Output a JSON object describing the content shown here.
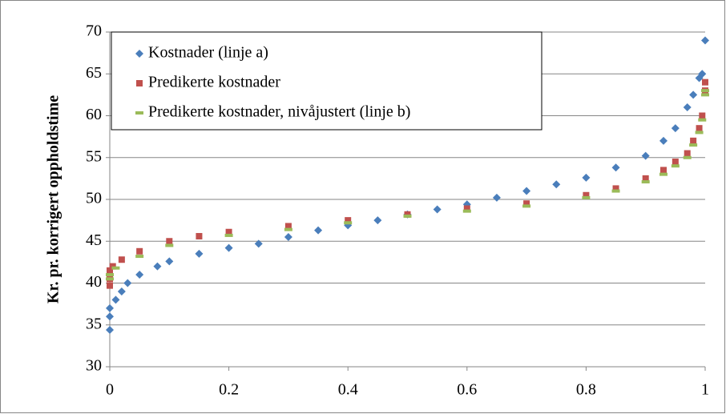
{
  "chart_data": {
    "type": "scatter",
    "y_label": "Kr. pr. korrigert oppholdstime",
    "xlim": [
      0,
      1
    ],
    "xticks": [
      0,
      0.2,
      0.4,
      0.6,
      0.8,
      1
    ],
    "ylim": [
      30,
      70
    ],
    "yticks": [
      30,
      35,
      40,
      45,
      50,
      55,
      60,
      65,
      70
    ],
    "grid": true,
    "legend": "top-left",
    "series": [
      {
        "name": "Kostnader (linje a)",
        "color": "#4a7ebb",
        "marker": "diamond",
        "x": [
          0,
          0,
          0,
          0.01,
          0.02,
          0.03,
          0.05,
          0.08,
          0.1,
          0.15,
          0.2,
          0.25,
          0.3,
          0.35,
          0.4,
          0.45,
          0.5,
          0.55,
          0.6,
          0.65,
          0.7,
          0.75,
          0.8,
          0.85,
          0.9,
          0.93,
          0.95,
          0.97,
          0.98,
          0.99,
          0.995,
          1
        ],
        "values": [
          34.4,
          36,
          37,
          38,
          39,
          40,
          41,
          42,
          42.6,
          43.5,
          44.2,
          44.7,
          45.5,
          46.3,
          46.9,
          47.5,
          48.2,
          48.8,
          49.4,
          50.2,
          51,
          51.8,
          52.6,
          53.8,
          55.2,
          57,
          58.5,
          61,
          62.5,
          64.5,
          65,
          69
        ]
      },
      {
        "name": "Predikerte kostnader",
        "color": "#c0504d",
        "marker": "square",
        "x": [
          0,
          0,
          0,
          0.005,
          0.02,
          0.05,
          0.1,
          0.15,
          0.2,
          0.3,
          0.4,
          0.5,
          0.6,
          0.7,
          0.8,
          0.85,
          0.9,
          0.93,
          0.95,
          0.97,
          0.98,
          0.99,
          0.995,
          1,
          1
        ],
        "values": [
          39.7,
          40.5,
          41.5,
          42,
          42.8,
          43.8,
          45,
          45.6,
          46.1,
          46.8,
          47.5,
          48.2,
          48.9,
          49.5,
          50.5,
          51.3,
          52.5,
          53.5,
          54.5,
          55.5,
          57,
          58.5,
          60,
          64,
          63
        ]
      },
      {
        "name": "Predikerte kostnader, nivåjustert (linje b)",
        "color": "#9bbb59",
        "marker": "dash",
        "x": [
          0,
          0,
          0.01,
          0.05,
          0.1,
          0.2,
          0.3,
          0.4,
          0.5,
          0.6,
          0.7,
          0.8,
          0.85,
          0.9,
          0.93,
          0.95,
          0.97,
          0.98,
          0.99,
          0.995,
          1,
          1
        ],
        "values": [
          40.5,
          41,
          41.8,
          43.2,
          44.5,
          45.7,
          46.4,
          47.2,
          48,
          48.6,
          49.2,
          50.2,
          51,
          52.1,
          53,
          54,
          55,
          56.5,
          58,
          59.5,
          63,
          62.5
        ]
      }
    ]
  }
}
